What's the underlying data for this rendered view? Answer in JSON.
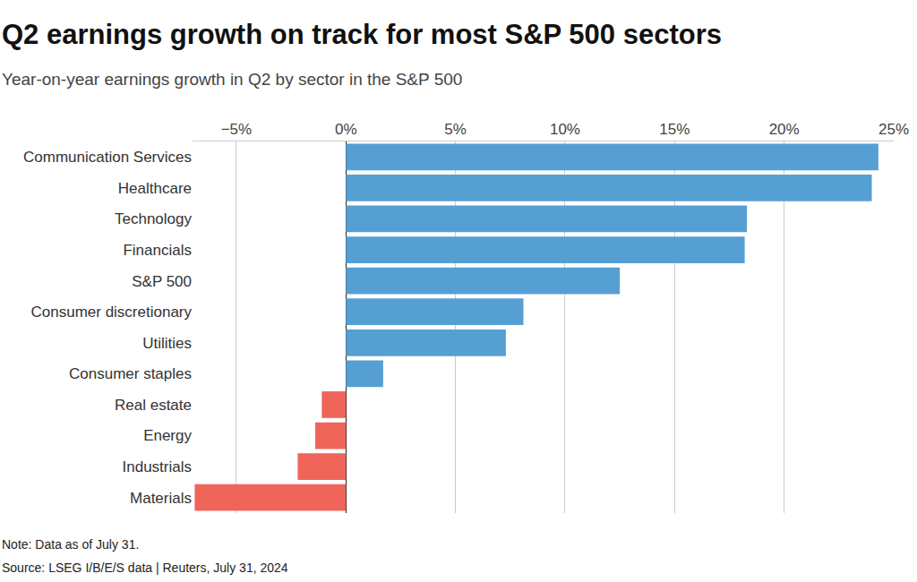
{
  "chart_data": {
    "type": "bar",
    "orientation": "horizontal",
    "title": "Q2 earnings growth on track for most S&P 500 sectors",
    "subtitle": "Year-on-year earnings growth in Q2 by sector in the S&P 500",
    "notes": [
      "Note: Data as of July 31.",
      "Source: LSEG I/B/E/S data | Reuters, July 31, 2024"
    ],
    "categories": [
      "Communication Services",
      "Healthcare",
      "Technology",
      "Financials",
      "S&P 500",
      "Consumer discretionary",
      "Utilities",
      "Consumer staples",
      "Real estate",
      "Energy",
      "Industrials",
      "Materials"
    ],
    "values": [
      24.3,
      24.0,
      18.3,
      18.2,
      12.5,
      8.1,
      7.3,
      1.7,
      -1.1,
      -1.4,
      -2.2,
      -6.9
    ],
    "colors": [
      "#569fd3",
      "#569fd3",
      "#569fd3",
      "#569fd3",
      "#569fd3",
      "#569fd3",
      "#569fd3",
      "#569fd3",
      "#ef655a",
      "#ef655a",
      "#ef655a",
      "#ef655a"
    ],
    "xlim": [
      -7,
      25
    ],
    "xticks": [
      {
        "value": -5,
        "label": "−5%"
      },
      {
        "value": 0,
        "label": "0%"
      },
      {
        "value": 5,
        "label": "5%"
      },
      {
        "value": 10,
        "label": "10%"
      },
      {
        "value": 15,
        "label": "15%"
      },
      {
        "value": 20,
        "label": "20%"
      },
      {
        "value": 25,
        "label": "25%"
      }
    ],
    "grid": true
  }
}
